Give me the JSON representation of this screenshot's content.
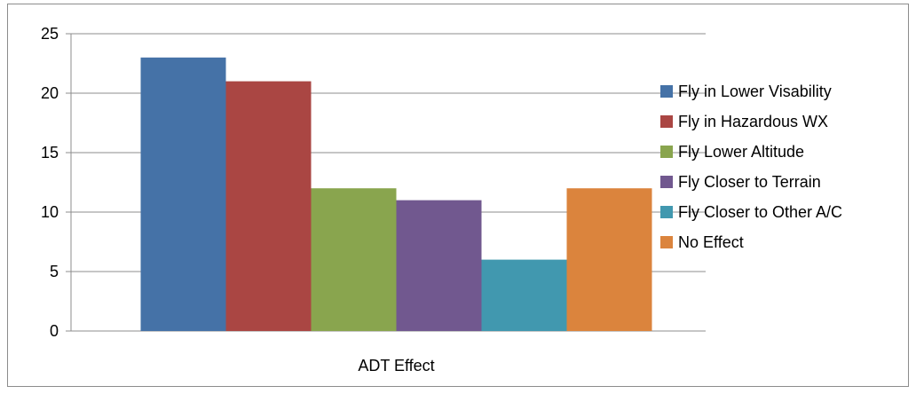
{
  "chart_data": {
    "type": "bar",
    "categories": [
      "ADT Effect"
    ],
    "series": [
      {
        "name": "Fly in Lower Visability",
        "values": [
          23
        ],
        "color": "#4572a7"
      },
      {
        "name": "Fly in Hazardous WX",
        "values": [
          21
        ],
        "color": "#aa4643"
      },
      {
        "name": "Fly Lower Altitude",
        "values": [
          12
        ],
        "color": "#89a54e"
      },
      {
        "name": "Fly Closer to Terrain",
        "values": [
          11
        ],
        "color": "#71588f"
      },
      {
        "name": "Fly Closer to Other A/C",
        "values": [
          6
        ],
        "color": "#4198af"
      },
      {
        "name": "No Effect",
        "values": [
          12
        ],
        "color": "#db843d"
      }
    ],
    "title": "",
    "xlabel": "",
    "ylabel": "",
    "ylim": [
      0,
      25
    ],
    "yticks": [
      0,
      5,
      10,
      15,
      20,
      25
    ],
    "grid": true,
    "legend_position": "right"
  }
}
